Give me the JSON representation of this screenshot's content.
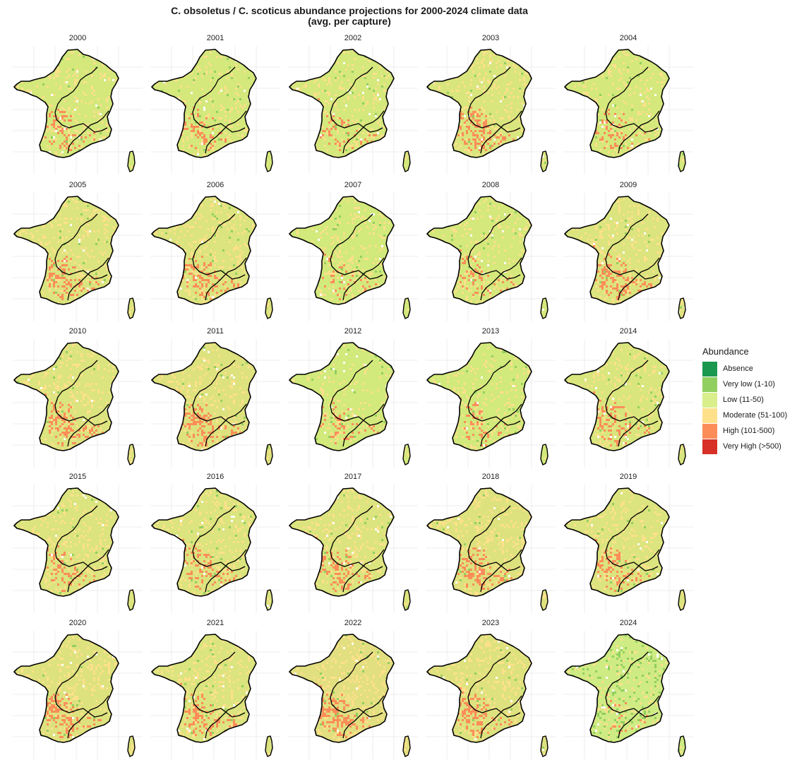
{
  "title": {
    "line1": "C. obsoletus / C. scoticus abundance projections for 2000-2024 climate data",
    "line2": "(avg. per capture)"
  },
  "panels": [
    {
      "year": "2000",
      "base": "#d4e87c",
      "hot": 0.32,
      "high": 0.14
    },
    {
      "year": "2001",
      "base": "#d4e87c",
      "hot": 0.3,
      "high": 0.12
    },
    {
      "year": "2002",
      "base": "#d4e87c",
      "hot": 0.3,
      "high": 0.12
    },
    {
      "year": "2003",
      "base": "#d9e57d",
      "hot": 0.4,
      "high": 0.22
    },
    {
      "year": "2004",
      "base": "#d4e87c",
      "hot": 0.3,
      "high": 0.12
    },
    {
      "year": "2005",
      "base": "#dbe47e",
      "hot": 0.38,
      "high": 0.18
    },
    {
      "year": "2006",
      "base": "#dbe47e",
      "hot": 0.38,
      "high": 0.18
    },
    {
      "year": "2007",
      "base": "#d2e97c",
      "hot": 0.28,
      "high": 0.1
    },
    {
      "year": "2008",
      "base": "#d4e87c",
      "hot": 0.32,
      "high": 0.12
    },
    {
      "year": "2009",
      "base": "#dbe47e",
      "hot": 0.38,
      "high": 0.18
    },
    {
      "year": "2010",
      "base": "#dbe47e",
      "hot": 0.38,
      "high": 0.2
    },
    {
      "year": "2011",
      "base": "#dde27e",
      "hot": 0.4,
      "high": 0.24
    },
    {
      "year": "2012",
      "base": "#d2e97c",
      "hot": 0.28,
      "high": 0.1
    },
    {
      "year": "2013",
      "base": "#d2e97c",
      "hot": 0.28,
      "high": 0.1
    },
    {
      "year": "2014",
      "base": "#d8e67d",
      "hot": 0.34,
      "high": 0.16
    },
    {
      "year": "2015",
      "base": "#dbe47e",
      "hot": 0.38,
      "high": 0.18
    },
    {
      "year": "2016",
      "base": "#dbe47e",
      "hot": 0.36,
      "high": 0.18
    },
    {
      "year": "2017",
      "base": "#dbe47e",
      "hot": 0.38,
      "high": 0.18
    },
    {
      "year": "2018",
      "base": "#dde27e",
      "hot": 0.42,
      "high": 0.22
    },
    {
      "year": "2019",
      "base": "#dbe47e",
      "hot": 0.38,
      "high": 0.18
    },
    {
      "year": "2020",
      "base": "#dde27e",
      "hot": 0.42,
      "high": 0.22
    },
    {
      "year": "2021",
      "base": "#dbe47e",
      "hot": 0.38,
      "high": 0.18
    },
    {
      "year": "2022",
      "base": "#e1df80",
      "hot": 0.46,
      "high": 0.26
    },
    {
      "year": "2023",
      "base": "#dde27e",
      "hot": 0.42,
      "high": 0.22
    },
    {
      "year": "2024",
      "base": "#cfeb83",
      "hot": 0.2,
      "high": 0.04
    }
  ],
  "legend": {
    "title": "Abundance",
    "items": [
      {
        "label": "Absence",
        "color": "#1a9850"
      },
      {
        "label": "Very low (1-10)",
        "color": "#91cf60"
      },
      {
        "label": "Low (11-50)",
        "color": "#d9ef8b"
      },
      {
        "label": "Moderate (51-100)",
        "color": "#fee08b"
      },
      {
        "label": "High (101-500)",
        "color": "#fc8d59"
      },
      {
        "label": "Very High (>500)",
        "color": "#d73027"
      }
    ]
  }
}
